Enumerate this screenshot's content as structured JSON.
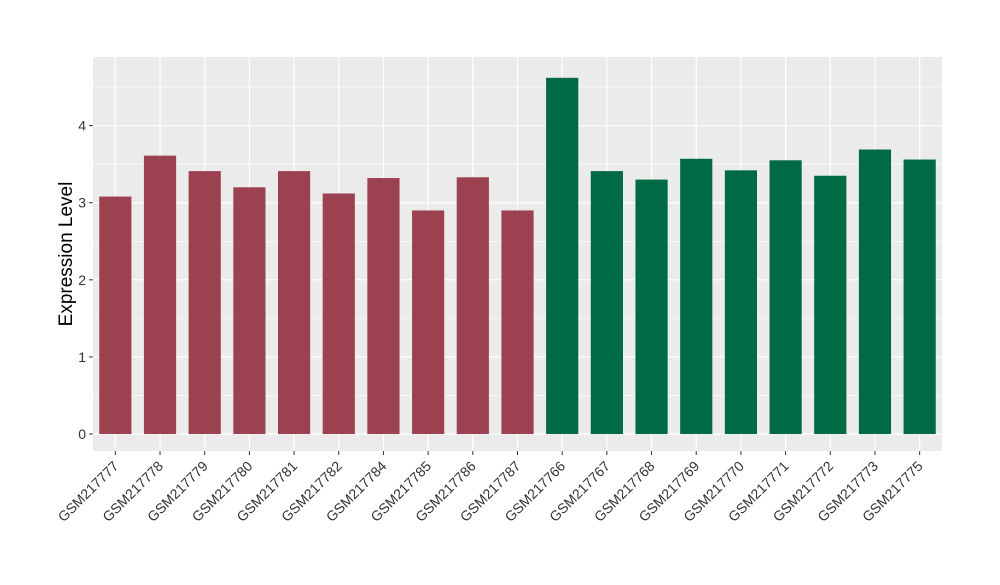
{
  "chart_data": {
    "type": "bar",
    "title": "",
    "xlabel": "",
    "ylabel": "Expression Level",
    "ylim": [
      -0.22,
      4.89
    ],
    "yticks": [
      0,
      1,
      2,
      3,
      4
    ],
    "grid": true,
    "categories": [
      "GSM217777",
      "GSM217778",
      "GSM217779",
      "GSM217780",
      "GSM217781",
      "GSM217782",
      "GSM217784",
      "GSM217785",
      "GSM217786",
      "GSM217787",
      "GSM217766",
      "GSM217767",
      "GSM217768",
      "GSM217769",
      "GSM217770",
      "GSM217771",
      "GSM217772",
      "GSM217773",
      "GSM217775"
    ],
    "values": [
      3.08,
      3.61,
      3.41,
      3.2,
      3.41,
      3.12,
      3.32,
      2.9,
      3.33,
      2.9,
      4.62,
      3.41,
      3.3,
      3.57,
      3.42,
      3.55,
      3.35,
      3.69,
      3.56
    ],
    "groups": [
      0,
      0,
      0,
      0,
      0,
      0,
      0,
      0,
      0,
      0,
      1,
      1,
      1,
      1,
      1,
      1,
      1,
      1,
      1
    ],
    "colors": [
      "#9b4150",
      "#006a45"
    ]
  }
}
